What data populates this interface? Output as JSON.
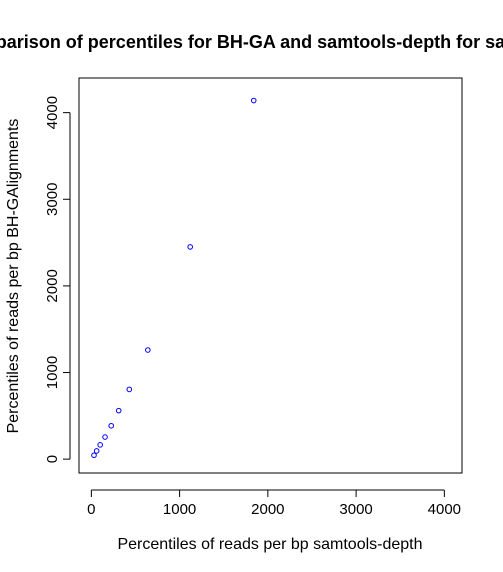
{
  "chart_data": {
    "type": "scatter",
    "title": "Comparison of percentiles for BH-GA and samtools-depth for sample",
    "xlabel": "Percentiles of reads per bp samtools-depth",
    "ylabel": "Percentiles of reads per bp BH-GAlignments",
    "xlim": [
      -140,
      4200
    ],
    "ylim": [
      -160,
      4400
    ],
    "xticks": [
      "0",
      "1000",
      "2000",
      "3000",
      "4000"
    ],
    "yticks": [
      "0",
      "1000",
      "2000",
      "3000",
      "4000"
    ],
    "grid": false,
    "marker_color": "#0000ff",
    "points": [
      {
        "x": 30,
        "y": 45
      },
      {
        "x": 60,
        "y": 95
      },
      {
        "x": 100,
        "y": 165
      },
      {
        "x": 155,
        "y": 255
      },
      {
        "x": 225,
        "y": 385
      },
      {
        "x": 310,
        "y": 560
      },
      {
        "x": 430,
        "y": 805
      },
      {
        "x": 640,
        "y": 1260
      },
      {
        "x": 1120,
        "y": 2450
      },
      {
        "x": 1840,
        "y": 4140
      }
    ]
  }
}
